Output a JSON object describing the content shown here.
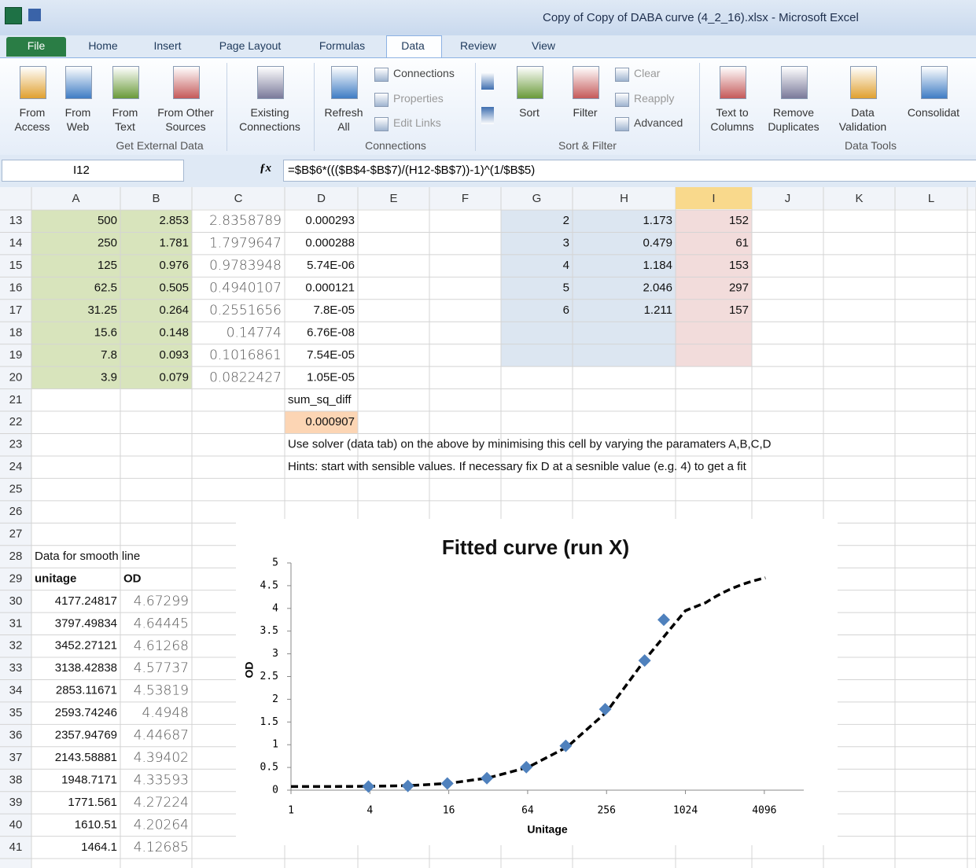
{
  "window": {
    "title": "Copy of Copy of DABA curve (4_2_16).xlsx - Microsoft Excel"
  },
  "ribbon": {
    "tabs": [
      "File",
      "Home",
      "Insert",
      "Page Layout",
      "Formulas",
      "Data",
      "Review",
      "View"
    ],
    "groups": [
      {
        "label": "Get External Data",
        "buttons": [
          "From Access",
          "From Web",
          "From Text",
          "From Other Sources",
          "Existing Connections"
        ]
      },
      {
        "label": "Connections",
        "buttons": [
          "Refresh All",
          "Connections",
          "Properties",
          "Edit Links"
        ]
      },
      {
        "label": "Sort & Filter",
        "buttons": [
          "Sort",
          "Filter",
          "Clear",
          "Reapply",
          "Advanced"
        ]
      },
      {
        "label": "Data Tools",
        "buttons": [
          "Text to Columns",
          "Remove Duplicates",
          "Data Validation",
          "Consolidat"
        ]
      }
    ]
  },
  "formula_bar": {
    "name_box": "I12",
    "formula": "=$B$6*((($B$4-$B$7)/(H12-$B$7))-1)^(1/$B$5)"
  },
  "sheet": {
    "columns": [
      "A",
      "B",
      "C",
      "D",
      "E",
      "F",
      "G",
      "H",
      "I",
      "J",
      "K",
      "L"
    ],
    "rows": [
      {
        "number": "13",
        "cells": {
          "A": "500",
          "B": "2.853",
          "C": "2.8358789",
          "D": "0.000293",
          "G": "2",
          "H": "1.173",
          "I": "152"
        }
      },
      {
        "number": "14",
        "cells": {
          "A": "250",
          "B": "1.781",
          "C": "1.7979647",
          "D": "0.000288",
          "G": "3",
          "H": "0.479",
          "I": "61"
        }
      },
      {
        "number": "15",
        "cells": {
          "A": "125",
          "B": "0.976",
          "C": "0.9783948",
          "D": "5.74E-06",
          "G": "4",
          "H": "1.184",
          "I": "153"
        }
      },
      {
        "number": "16",
        "cells": {
          "A": "62.5",
          "B": "0.505",
          "C": "0.4940107",
          "D": "0.000121",
          "G": "5",
          "H": "2.046",
          "I": "297"
        }
      },
      {
        "number": "17",
        "cells": {
          "A": "31.25",
          "B": "0.264",
          "C": "0.2551656",
          "D": "7.8E-05",
          "G": "6",
          "H": "1.211",
          "I": "157"
        }
      },
      {
        "number": "18",
        "cells": {
          "A": "15.6",
          "B": "0.148",
          "C": "0.14774",
          "D": "6.76E-08"
        }
      },
      {
        "number": "19",
        "cells": {
          "A": "7.8",
          "B": "0.093",
          "C": "0.1016861",
          "D": "7.54E-05"
        }
      },
      {
        "number": "20",
        "cells": {
          "A": "3.9",
          "B": "0.079",
          "C": "0.0822427",
          "D": "1.05E-05"
        }
      },
      {
        "number": "21",
        "cells": {
          "D": "sum_sq_diff"
        }
      },
      {
        "number": "22",
        "cells": {
          "D": "0.000907"
        }
      },
      {
        "number": "23",
        "cells": {
          "D": "Use solver (data tab) on the above by minimising this cell by varying the paramaters A,B,C,D"
        }
      },
      {
        "number": "24",
        "cells": {
          "D": "Hints: start with sensible values. If necessary fix D at a sesnible value (e.g. 4) to get a fit"
        }
      },
      {
        "number": "25",
        "cells": {}
      },
      {
        "number": "26",
        "cells": {}
      },
      {
        "number": "27",
        "cells": {}
      },
      {
        "number": "28",
        "cells": {
          "A": "Data for smooth line"
        }
      },
      {
        "number": "29",
        "cells": {
          "A": "unitage",
          "B": "OD"
        }
      },
      {
        "number": "30",
        "cells": {
          "A": "4177.24817",
          "B": "4.67299"
        }
      },
      {
        "number": "31",
        "cells": {
          "A": "3797.49834",
          "B": "4.64445"
        }
      },
      {
        "number": "32",
        "cells": {
          "A": "3452.27121",
          "B": "4.61268"
        }
      },
      {
        "number": "33",
        "cells": {
          "A": "3138.42838",
          "B": "4.57737"
        }
      },
      {
        "number": "34",
        "cells": {
          "A": "2853.11671",
          "B": "4.53819"
        }
      },
      {
        "number": "35",
        "cells": {
          "A": "2593.74246",
          "B": "4.4948"
        }
      },
      {
        "number": "36",
        "cells": {
          "A": "2357.94769",
          "B": "4.44687"
        }
      },
      {
        "number": "37",
        "cells": {
          "A": "2143.58881",
          "B": "4.39402"
        }
      },
      {
        "number": "38",
        "cells": {
          "A": "1948.7171",
          "B": "4.33593"
        }
      },
      {
        "number": "39",
        "cells": {
          "A": "1771.561",
          "B": "4.27224"
        }
      },
      {
        "number": "40",
        "cells": {
          "A": "1610.51",
          "B": "4.20264"
        }
      },
      {
        "number": "41",
        "cells": {
          "A": "1464.1",
          "B": "4.12685"
        }
      }
    ]
  },
  "chart_data": {
    "type": "scatter",
    "title": "Fitted curve (run X)",
    "x_label": "Unitage",
    "y_label": "OD",
    "x_log_base": 2,
    "xlim": [
      1,
      8192
    ],
    "xticks": [
      1,
      4,
      16,
      64,
      256,
      1024,
      4096
    ],
    "ylim": [
      0,
      5
    ],
    "yticks": [
      0,
      0.5,
      1,
      1.5,
      2,
      2.5,
      3,
      3.5,
      4,
      4.5,
      5
    ],
    "grid": false,
    "series": [
      {
        "mode": "markers",
        "marker": "diamond",
        "color": "#4f81bd",
        "x": [
          700,
          500,
          250,
          125,
          62.5,
          31.25,
          15.6,
          7.8,
          3.9
        ],
        "values": [
          3.75,
          2.853,
          1.781,
          0.976,
          0.505,
          0.264,
          0.148,
          0.093,
          0.079
        ]
      },
      {
        "mode": "line",
        "dash": true,
        "color": "#000000",
        "x": [
          1,
          2,
          4,
          8,
          16,
          32,
          64,
          128,
          256,
          512,
          1024,
          1464.1,
          1610.51,
          1771.561,
          1948.7171,
          2143.58881,
          2357.94769,
          2593.74246,
          2853.11671,
          3138.42838,
          3452.27121,
          3797.49834,
          4177.24817
        ],
        "values": [
          0.08,
          0.08,
          0.085,
          0.1,
          0.15,
          0.27,
          0.5,
          0.95,
          1.72,
          2.9,
          3.95,
          4.12685,
          4.20264,
          4.27224,
          4.33593,
          4.39402,
          4.44687,
          4.4948,
          4.53819,
          4.57737,
          4.61268,
          4.64445,
          4.67299
        ]
      }
    ]
  }
}
